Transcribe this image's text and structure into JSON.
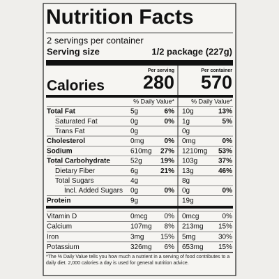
{
  "title": "Nutrition Facts",
  "servings": "2 servings per container",
  "serving_size_label": "Serving size",
  "serving_size": "1/2 package (227g)",
  "per_serving": "Per serving",
  "per_container": "Per container",
  "calories_label": "Calories",
  "calories_serving": "280",
  "calories_container": "570",
  "dv_header": "% Daily Value*",
  "nutrients": [
    {
      "label": "Total Fat",
      "bold": true,
      "indent": 0,
      "serving_amount": "5g",
      "serving_dv": "6%",
      "container_amount": "10g",
      "container_dv": "13%"
    },
    {
      "label": "Saturated Fat",
      "bold": false,
      "indent": 1,
      "serving_amount": "0g",
      "serving_dv": "0%",
      "container_amount": "1g",
      "container_dv": "5%"
    },
    {
      "label": "Trans Fat",
      "bold": false,
      "indent": 1,
      "serving_amount": "0g",
      "container_amount": "0g"
    },
    {
      "label": "Cholesterol",
      "bold": true,
      "indent": 0,
      "serving_amount": "0mg",
      "serving_dv": "0%",
      "container_amount": "0mg",
      "container_dv": "0%"
    },
    {
      "label": "Sodium",
      "bold": true,
      "indent": 0,
      "serving_amount": "610mg",
      "serving_dv": "27%",
      "container_amount": "1210mg",
      "container_dv": "53%"
    },
    {
      "label": "Total Carbohydrate",
      "bold": true,
      "indent": 0,
      "serving_amount": "52g",
      "serving_dv": "19%",
      "container_amount": "103g",
      "container_dv": "37%"
    },
    {
      "label": "Dietary Fiber",
      "bold": false,
      "indent": 1,
      "serving_amount": "6g",
      "serving_dv": "21%",
      "container_amount": "13g",
      "container_dv": "46%"
    },
    {
      "label": "Total Sugars",
      "bold": false,
      "indent": 1,
      "serving_amount": "4g",
      "container_amount": "8g"
    },
    {
      "label": "Incl. Added Sugars",
      "bold": false,
      "indent": 2,
      "serving_amount": "0g",
      "serving_dv": "0%",
      "container_amount": "0g",
      "container_dv": "0%"
    },
    {
      "label": "Protein",
      "bold": true,
      "indent": 0,
      "serving_amount": "9g",
      "container_amount": "19g"
    }
  ],
  "vitamins": [
    {
      "label": "Vitamin D",
      "serving_amount": "0mcg",
      "serving_dv": "0%",
      "container_amount": "0mcg",
      "container_dv": "0%"
    },
    {
      "label": "Calcium",
      "serving_amount": "107mg",
      "serving_dv": "8%",
      "container_amount": "213mg",
      "container_dv": "15%"
    },
    {
      "label": "Iron",
      "serving_amount": "3mg",
      "serving_dv": "15%",
      "container_amount": "5mg",
      "container_dv": "30%"
    },
    {
      "label": "Potassium",
      "serving_amount": "326mg",
      "serving_dv": "6%",
      "container_amount": "653mg",
      "container_dv": "15%"
    }
  ],
  "footnote": "*The % Daily Value tells you how much a nutrient in a serving of food contributes to a daily diet. 2,000 calories a day is used for general nutrition advice."
}
